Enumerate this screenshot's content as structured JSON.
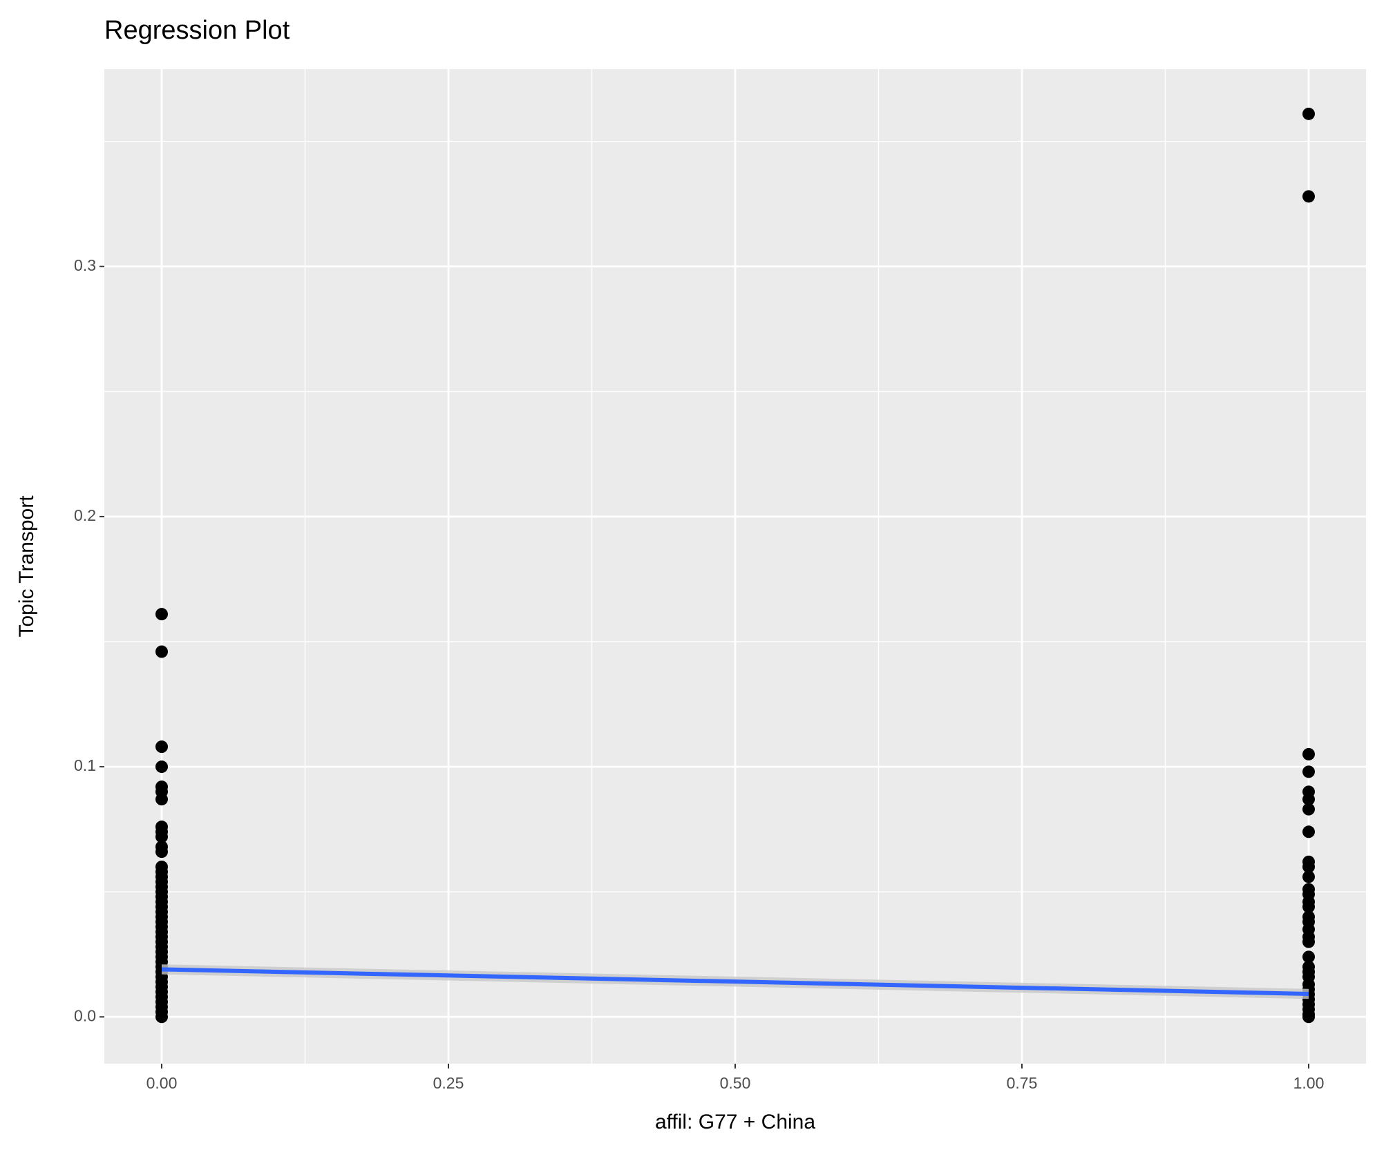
{
  "chart_data": {
    "type": "scatter",
    "title": "Regression Plot",
    "x_label": "affil: G77 + China",
    "y_label": "Topic Transport",
    "xlim": [
      -0.05,
      1.05
    ],
    "ylim": [
      -0.0187,
      0.3789
    ],
    "xticks": [
      {
        "value": 0,
        "label": "0.00"
      },
      {
        "value": 0.25,
        "label": "0.25"
      },
      {
        "value": 0.5,
        "label": "0.50"
      },
      {
        "value": 0.75,
        "label": "0.75"
      },
      {
        "value": 1,
        "label": "1.00"
      }
    ],
    "yticks": [
      {
        "value": 0,
        "label": "0.0"
      },
      0.1,
      0.2,
      0.3
    ],
    "x_minor_grid": [
      0.125,
      0.375,
      0.625,
      0.875
    ],
    "y_minor_grid": [
      0.05,
      0.15,
      0.25,
      0.35
    ],
    "grid": true,
    "points": {
      "color": "#000000",
      "x": [
        0,
        0,
        0,
        0,
        0,
        0,
        0,
        0,
        0,
        0,
        0,
        0,
        0,
        0,
        0,
        0,
        0,
        0,
        0,
        0,
        0,
        0,
        0,
        0,
        0,
        0,
        0,
        0,
        0,
        0,
        0,
        0,
        0,
        0,
        0,
        0,
        0,
        0,
        0,
        0,
        0,
        0,
        0,
        1,
        1,
        1,
        1,
        1,
        1,
        1,
        1,
        1,
        1,
        1,
        1,
        1,
        1,
        1,
        1,
        1,
        1,
        1,
        1,
        1,
        1,
        1,
        1,
        1,
        1,
        1,
        1,
        1,
        1,
        1,
        1
      ],
      "y": [
        0.161,
        0.146,
        0.108,
        0.1,
        0.092,
        0.09,
        0.087,
        0.076,
        0.074,
        0.072,
        0.068,
        0.066,
        0.06,
        0.058,
        0.056,
        0.054,
        0.052,
        0.05,
        0.048,
        0.046,
        0.044,
        0.042,
        0.04,
        0.038,
        0.036,
        0.034,
        0.032,
        0.03,
        0.028,
        0.026,
        0.024,
        0.022,
        0.02,
        0.018,
        0.016,
        0.014,
        0.012,
        0.01,
        0.008,
        0.006,
        0.004,
        0.002,
        0,
        0.361,
        0.328,
        0.105,
        0.098,
        0.09,
        0.087,
        0.083,
        0.074,
        0.062,
        0.06,
        0.056,
        0.051,
        0.049,
        0.046,
        0.044,
        0.04,
        0.038,
        0.035,
        0.032,
        0.03,
        0.024,
        0.02,
        0.018,
        0.016,
        0.013,
        0.011,
        0.009,
        0.007,
        0.005,
        0.003,
        0.001,
        0
      ]
    },
    "fit": {
      "color": "#3366ff",
      "ribbon_color": "#c8c8c8",
      "x": [
        0,
        1
      ],
      "y": [
        0.019,
        0.0092
      ],
      "se_low": [
        0.017,
        0.0072
      ],
      "se_high": [
        0.021,
        0.0112
      ]
    }
  }
}
